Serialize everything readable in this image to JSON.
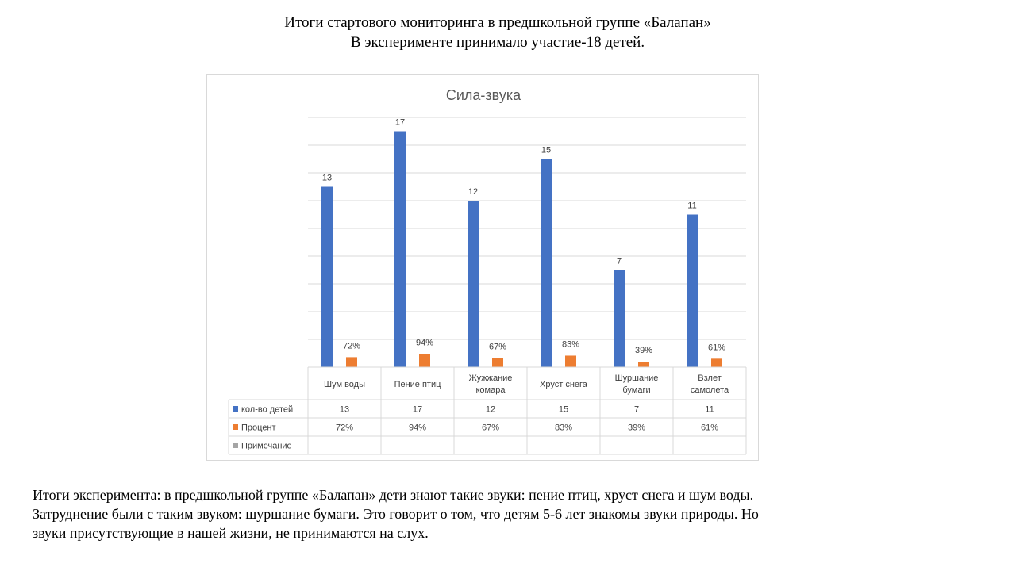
{
  "header": {
    "line1": "Итоги стартового мониторинга в предшкольной группе «Балапан»",
    "line2": "В эксперименте принимало участие-18 детей."
  },
  "chart_data": {
    "type": "bar",
    "title": "Сила-звука",
    "categories": [
      [
        "Шум воды"
      ],
      [
        "Пение птиц"
      ],
      [
        "Жужжание",
        "комара"
      ],
      [
        "Хруст снега"
      ],
      [
        "Шуршание",
        "бумаги"
      ],
      [
        "Взлет",
        "самолета"
      ]
    ],
    "series": [
      {
        "name": "кол-во детей",
        "color": "#4472C4",
        "values": [
          13,
          17,
          12,
          15,
          7,
          11
        ],
        "labels": [
          "13",
          "17",
          "12",
          "15",
          "7",
          "11"
        ]
      },
      {
        "name": "Процент",
        "color": "#ED7D31",
        "values": [
          0.72,
          0.94,
          0.67,
          0.83,
          0.39,
          0.61
        ],
        "labels": [
          "72%",
          "94%",
          "67%",
          "83%",
          "39%",
          "61%"
        ]
      },
      {
        "name": "Примечание",
        "color": "#A5A5A5",
        "values": [
          null,
          null,
          null,
          null,
          null,
          null
        ],
        "labels": [
          "",
          "",
          "",
          "",
          "",
          ""
        ]
      }
    ],
    "ylim": [
      0,
      18
    ],
    "ytick_step": 2,
    "grid": true,
    "legend": "data-table"
  },
  "summary": {
    "line1": "Итоги эксперимента: в предшкольной группе «Балапан» дети знают такие звуки: пение птиц, хруст снега и шум воды.",
    "line2": "Затруднение были с таким звуком: шуршание бумаги. Это говорит о том, что детям 5-6 лет знакомы звуки природы. Но",
    "line3": "звуки присутствующие в нашей жизни, не принимаются на слух."
  }
}
